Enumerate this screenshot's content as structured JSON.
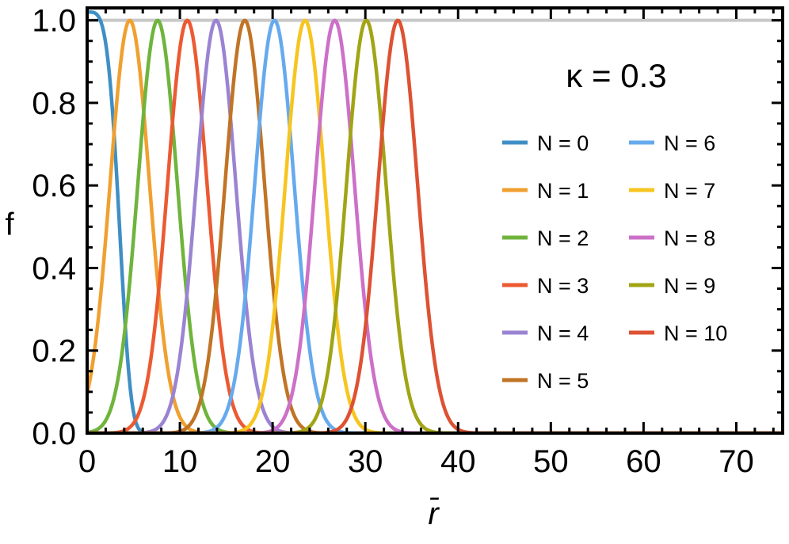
{
  "chart_data": {
    "type": "line",
    "title": "",
    "xlabel": "r̄",
    "ylabel": "f",
    "xlim": [
      0,
      75
    ],
    "ylim": [
      0,
      1.03
    ],
    "xticks": [
      0,
      10,
      20,
      30,
      40,
      50,
      60,
      70
    ],
    "yticks": [
      0.0,
      0.2,
      0.4,
      0.6,
      0.8,
      1.0
    ],
    "xtick_labels": [
      "0",
      "10",
      "20",
      "30",
      "40",
      "50",
      "60",
      "70"
    ],
    "ytick_labels": [
      "0.0",
      "0.2",
      "0.4",
      "0.6",
      "0.8",
      "1.0"
    ],
    "annotation": "κ = 0.3",
    "reference_line": {
      "y": 1.0,
      "color": "#c8c8c8"
    },
    "grid": false,
    "legend_position": "right",
    "series": [
      {
        "name": "N = 0",
        "color": "#3f8fc5",
        "peak_x": 0,
        "peak_y": 1.02,
        "width": 3.8
      },
      {
        "name": "N = 1",
        "color": "#f0a030",
        "peak_x": 4.6,
        "peak_y": 1.0,
        "width": 3.0
      },
      {
        "name": "N = 2",
        "color": "#6fb43c",
        "peak_x": 7.6,
        "peak_y": 1.0,
        "width": 3.0
      },
      {
        "name": "N = 3",
        "color": "#ec5a32",
        "peak_x": 10.8,
        "peak_y": 1.0,
        "width": 3.0
      },
      {
        "name": "N = 4",
        "color": "#9a84d2",
        "peak_x": 13.9,
        "peak_y": 1.0,
        "width": 3.0
      },
      {
        "name": "N = 5",
        "color": "#c17425",
        "peak_x": 17.0,
        "peak_y": 1.0,
        "width": 3.0
      },
      {
        "name": "N = 6",
        "color": "#66aaee",
        "peak_x": 20.2,
        "peak_y": 1.0,
        "width": 3.0
      },
      {
        "name": "N = 7",
        "color": "#f7c520",
        "peak_x": 23.5,
        "peak_y": 1.0,
        "width": 3.0
      },
      {
        "name": "N = 8",
        "color": "#cc70c8",
        "peak_x": 26.7,
        "peak_y": 1.0,
        "width": 3.0
      },
      {
        "name": "N = 9",
        "color": "#a1a515",
        "peak_x": 30.1,
        "peak_y": 1.0,
        "width": 3.0
      },
      {
        "name": "N = 10",
        "color": "#dd5233",
        "peak_x": 33.5,
        "peak_y": 1.0,
        "width": 3.0
      }
    ]
  }
}
